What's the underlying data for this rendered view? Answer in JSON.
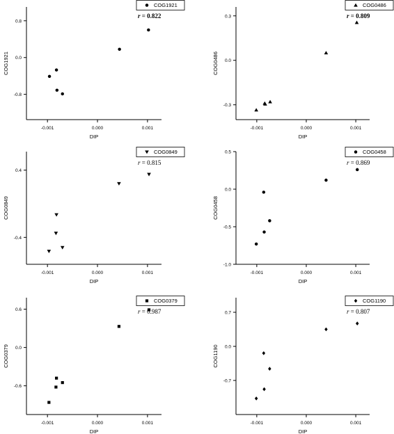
{
  "chart_data": [
    {
      "type": "scatter",
      "marker": "circle",
      "legend": "COG1921",
      "legend_position": "top-right",
      "r_label": "r",
      "r_value": "= 0.822",
      "r_bold": true,
      "xlabel": "DIP",
      "ylabel": "COG1921",
      "x_ticks": [
        "-0.001",
        "0.000",
        "0.001"
      ],
      "x_tick_values": [
        -0.001,
        0.0,
        0.001
      ],
      "y_ticks": [
        "0.8",
        "0.0",
        "-0.8"
      ],
      "y_tick_values": [
        0.8,
        0.0,
        -0.8
      ],
      "xlim": [
        -0.00142,
        0.00128
      ],
      "ylim": [
        -1.35,
        1.1
      ],
      "x": [
        -0.00096,
        -0.00082,
        -0.00081,
        -0.0007,
        0.00044,
        0.00102
      ],
      "y": [
        -0.41,
        -0.27,
        -0.71,
        -0.79,
        0.18,
        0.6
      ]
    },
    {
      "type": "scatter",
      "marker": "triangle-up",
      "legend": "COG0486",
      "legend_position": "top-right",
      "r_label": "r",
      "r_value": "= 0.809",
      "r_bold": true,
      "xlabel": "DIP",
      "ylabel": "COG0486",
      "x_ticks": [
        "-0.001",
        "0.000",
        "0.001"
      ],
      "x_tick_values": [
        -0.001,
        0.0,
        0.001
      ],
      "y_ticks": [
        "0.3",
        "0.0",
        "-0.3"
      ],
      "y_tick_values": [
        0.3,
        0.0,
        -0.3
      ],
      "xlim": [
        -0.00142,
        0.00128
      ],
      "ylim": [
        -0.4,
        0.36
      ],
      "x": [
        -0.00101,
        -0.00084,
        -0.00083,
        -0.00073,
        0.0004,
        0.00102
      ],
      "y": [
        -0.335,
        -0.29,
        -0.295,
        -0.28,
        0.05,
        0.255
      ]
    },
    {
      "type": "scatter",
      "marker": "triangle-down",
      "legend": "COG0849",
      "legend_position": "top-right",
      "r_label": "r",
      "r_value": "= 0.815",
      "r_bold": false,
      "xlabel": "DIP",
      "ylabel": "COG0849",
      "x_ticks": [
        "-0.001",
        "0.000",
        "0.001"
      ],
      "x_tick_values": [
        -0.001,
        0.0,
        0.001
      ],
      "y_ticks": [
        "0.4",
        "-0.4"
      ],
      "y_tick_values": [
        0.4,
        -0.4
      ],
      "xlim": [
        -0.00142,
        0.00128
      ],
      "ylim": [
        -0.72,
        0.62
      ],
      "x": [
        -0.00097,
        -0.00083,
        -0.00082,
        -0.0007,
        0.00043,
        0.00103
      ],
      "y": [
        -0.565,
        -0.35,
        -0.13,
        -0.52,
        0.24,
        0.35
      ]
    },
    {
      "type": "scatter",
      "marker": "circle",
      "legend": "COG0458",
      "legend_position": "top-right",
      "r_label": "r",
      "r_value": "= 0.869",
      "r_bold": false,
      "xlabel": "DIP",
      "ylabel": "COG0458",
      "x_ticks": [
        "-0.001",
        "0.000",
        "0.001"
      ],
      "x_tick_values": [
        -0.001,
        0.0,
        0.001
      ],
      "y_ticks": [
        "0.5",
        "0.0",
        "-0.5",
        "-1.0"
      ],
      "y_tick_values": [
        0.5,
        0.0,
        -0.5,
        -1.0
      ],
      "xlim": [
        -0.00142,
        0.00128
      ],
      "ylim": [
        -1.0,
        0.5
      ],
      "x": [
        -0.00101,
        -0.00086,
        -0.00085,
        -0.00074,
        0.0004,
        0.00103
      ],
      "y": [
        -0.73,
        -0.04,
        -0.57,
        -0.42,
        0.12,
        0.26
      ]
    },
    {
      "type": "scatter",
      "marker": "square",
      "legend": "COG0379",
      "legend_position": "top-right",
      "r_label": "r",
      "r_value": "= 0.987",
      "r_bold": false,
      "xlabel": "DIP",
      "ylabel": "COG0379",
      "x_ticks": [
        "-0.001",
        "0.000",
        "0.001"
      ],
      "x_tick_values": [
        -0.001,
        0.0,
        0.001
      ],
      "y_ticks": [
        "0.6",
        "0.0",
        "-0.6"
      ],
      "y_tick_values": [
        0.6,
        0.0,
        -0.6
      ],
      "xlim": [
        -0.00142,
        0.00128
      ],
      "ylim": [
        -1.05,
        0.78
      ],
      "x": [
        -0.00097,
        -0.00083,
        -0.00082,
        -0.0007,
        0.00043,
        0.00103
      ],
      "y": [
        -0.86,
        -0.62,
        -0.48,
        -0.55,
        0.33,
        0.59
      ]
    },
    {
      "type": "scatter",
      "marker": "diamond",
      "legend": "COG1190",
      "legend_position": "top-right",
      "r_label": "r",
      "r_value": "= 0.807",
      "r_bold": false,
      "xlabel": "DIP",
      "ylabel": "COG1190",
      "x_ticks": [
        "-0.001",
        "0.000",
        "0.001"
      ],
      "x_tick_values": [
        -0.001,
        0.0,
        0.001
      ],
      "y_ticks": [
        "0.7",
        "0.0",
        "-0.7"
      ],
      "y_tick_values": [
        0.7,
        0.0,
        -0.7
      ],
      "xlim": [
        -0.00142,
        0.00128
      ],
      "ylim": [
        -1.4,
        1.0
      ],
      "x": [
        -0.00101,
        -0.00086,
        -0.00085,
        -0.00074,
        0.0004,
        0.00103
      ],
      "y": [
        -1.07,
        -0.14,
        -0.88,
        -0.46,
        0.35,
        0.47
      ]
    }
  ]
}
